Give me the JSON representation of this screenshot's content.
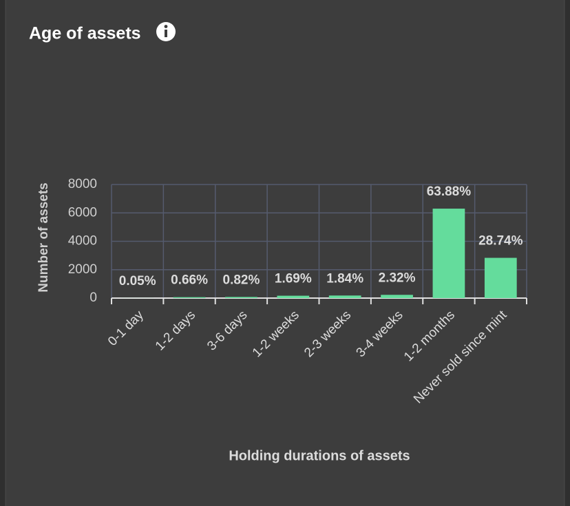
{
  "chart_data": {
    "type": "bar",
    "title": "Age of assets",
    "xlabel": "Holding durations of assets",
    "ylabel": "Number of assets",
    "categories": [
      "0-1 day",
      "1-2 days",
      "3-6 days",
      "1-2 weeks",
      "2-3 weeks",
      "3-4 weeks",
      "1-2 months",
      "Never sold since mint"
    ],
    "values": [
      5,
      65,
      81,
      167,
      181,
      229,
      6300,
      2835
    ],
    "value_labels": [
      "0.05%",
      "0.66%",
      "0.82%",
      "1.69%",
      "1.84%",
      "2.32%",
      "63.88%",
      "28.74%"
    ],
    "color": "#64dc9c",
    "ylim": [
      0,
      8000
    ],
    "yticks": [
      0,
      2000,
      4000,
      6000,
      8000
    ],
    "grid": true
  }
}
